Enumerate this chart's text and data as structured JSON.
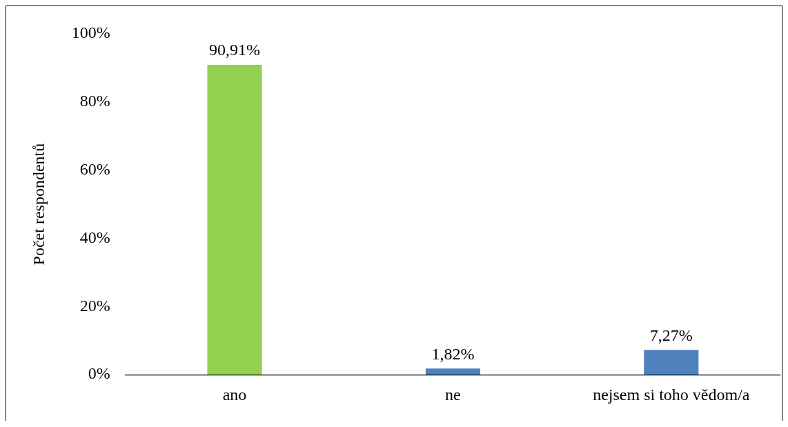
{
  "chart_data": {
    "type": "bar",
    "ylabel": "Počet respondentů",
    "categories": [
      "ano",
      "ne",
      "nejsem si toho vědom/a"
    ],
    "values": [
      90.91,
      1.82,
      7.27
    ],
    "colors": [
      "#92d050",
      "#4f81bd",
      "#4f81bd"
    ],
    "value_labels": [
      "90,91%",
      "1,82%",
      "7,27%"
    ],
    "ylim": [
      0,
      100
    ],
    "yticks": [
      {
        "value": 0,
        "label": "0%"
      },
      {
        "value": 20,
        "label": "20%"
      },
      {
        "value": 40,
        "label": "40%"
      },
      {
        "value": 60,
        "label": "60%"
      },
      {
        "value": 80,
        "label": "80%"
      },
      {
        "value": 100,
        "label": "100%"
      }
    ],
    "grid": false,
    "legend": false
  }
}
